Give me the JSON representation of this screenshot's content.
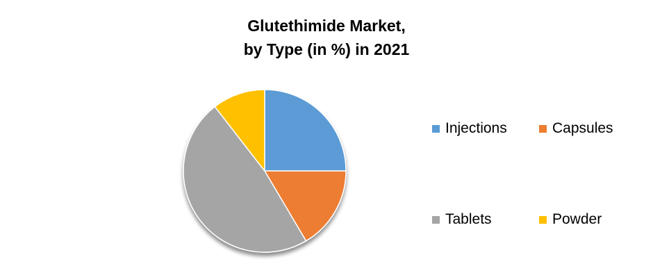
{
  "chart_data": {
    "type": "pie",
    "title": "Glutethimide Market, by Type (in %) in 2021",
    "title_lines": [
      "Glutethimide Market,",
      "by Type (in %) in 2021"
    ],
    "categories": [
      "Injections",
      "Capsules",
      "Tablets",
      "Powder"
    ],
    "values": [
      25,
      16.5,
      48,
      10.5
    ],
    "colors": [
      "#5B9BD5",
      "#ED7D31",
      "#A5A5A5",
      "#FFC000"
    ],
    "legend_position": "right",
    "start_angle": "12 o'clock, clockwise"
  }
}
